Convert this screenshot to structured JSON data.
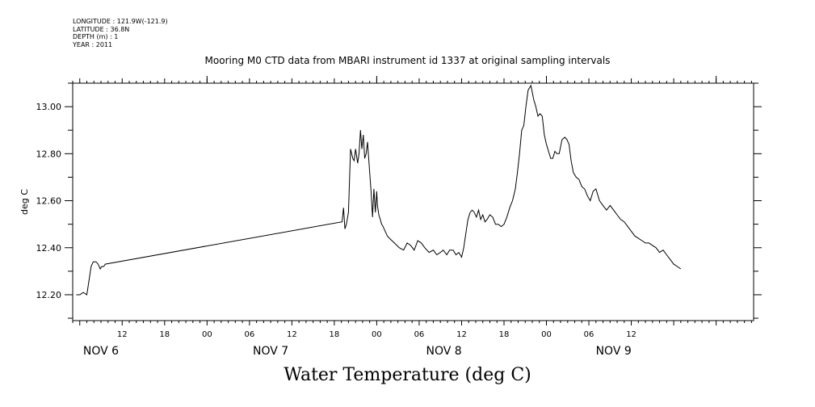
{
  "meta": {
    "longitude": "LONGITUDE : 121.9W(-121.9)",
    "latitude": "LATITUDE : 36.8N",
    "depth": "DEPTH (m) : 1",
    "year": "YEAR : 2011"
  },
  "chart_data": {
    "type": "line",
    "title": "Mooring M0 CTD data from MBARI instrument id 1337 at original sampling intervals",
    "xlabel": "Water Temperature (deg C)",
    "ylabel": "deg C",
    "xlim": [
      5.0,
      101.3
    ],
    "ylim": [
      12.09,
      13.1
    ],
    "yticks": [
      12.2,
      12.4,
      12.6,
      12.8,
      13.0
    ],
    "ytick_labels": [
      "12.20",
      "12.40",
      "12.60",
      "12.80",
      "13.00"
    ],
    "xticks": [
      12,
      18,
      24,
      30,
      36,
      42,
      48,
      54,
      60,
      66,
      72,
      78,
      84,
      90
    ],
    "xtick_labels": [
      "12",
      "18",
      "00",
      "06",
      "12",
      "18",
      "00",
      "06",
      "12",
      "18",
      "00",
      "06",
      "12"
    ],
    "xtick_label_hours": [
      12,
      18,
      24,
      30,
      36,
      42,
      48,
      54,
      60,
      66,
      72,
      78,
      84
    ],
    "day_labels": [
      {
        "hour": 9,
        "label": "NOV  6"
      },
      {
        "hour": 33,
        "label": "NOV  7"
      },
      {
        "hour": 57.5,
        "label": "NOV  8"
      },
      {
        "hour": 81.5,
        "label": "NOV  9"
      }
    ],
    "x_units": "hours since Nov 6 2011 00:00",
    "grid": false,
    "series": [
      {
        "color": "#000000",
        "x": [
          5.5,
          6.0,
          6.5,
          7.0,
          7.6,
          7.9,
          8.1,
          8.3,
          8.6,
          8.9,
          9.1,
          9.2,
          9.4,
          9.6,
          43.1,
          43.3,
          43.5,
          43.7,
          44.0,
          44.3,
          44.6,
          44.8,
          45.0,
          45.3,
          45.5,
          45.7,
          45.9,
          46.1,
          46.3,
          46.5,
          46.7,
          47.0,
          47.2,
          47.4,
          47.6,
          47.8,
          48.0,
          48.1,
          48.3,
          48.5,
          48.7,
          48.9,
          49.2,
          49.5,
          49.8,
          50.5,
          51.2,
          51.8,
          52.3,
          52.8,
          53.3,
          53.8,
          54.3,
          54.8,
          55.4,
          56.0,
          56.5,
          57.0,
          57.4,
          57.9,
          58.3,
          58.8,
          59.2,
          59.6,
          60.0,
          60.3,
          60.6,
          60.9,
          61.2,
          61.5,
          61.8,
          62.1,
          62.4,
          62.7,
          63.0,
          63.3,
          63.6,
          64.0,
          64.4,
          64.8,
          65.2,
          65.6,
          66.0,
          66.4,
          66.8,
          67.2,
          67.6,
          67.9,
          68.2,
          68.5,
          68.8,
          69.1,
          69.4,
          69.8,
          70.2,
          70.5,
          70.8,
          71.1,
          71.4,
          71.7,
          72.0,
          72.3,
          72.6,
          72.9,
          73.2,
          73.5,
          73.8,
          74.2,
          74.6,
          74.9,
          75.2,
          75.5,
          75.8,
          76.2,
          76.6,
          77.0,
          77.4,
          77.8,
          78.2,
          78.6,
          79.0,
          79.5,
          80.0,
          80.5,
          81.0,
          81.5,
          82.0,
          82.5,
          83.0,
          83.5,
          84.0,
          84.5,
          85.0,
          85.5,
          86.0,
          86.5,
          87.0,
          87.5,
          88.0,
          88.5,
          89.0,
          89.5,
          90.0,
          90.5,
          91.0
        ],
        "y": [
          12.2,
          12.2,
          12.21,
          12.2,
          12.32,
          12.34,
          12.34,
          12.34,
          12.33,
          12.31,
          12.32,
          12.32,
          12.32,
          12.33,
          12.51,
          12.57,
          12.48,
          12.5,
          12.55,
          12.82,
          12.78,
          12.77,
          12.82,
          12.76,
          12.8,
          12.9,
          12.82,
          12.88,
          12.78,
          12.8,
          12.85,
          12.72,
          12.64,
          12.53,
          12.65,
          12.55,
          12.64,
          12.58,
          12.54,
          12.52,
          12.5,
          12.49,
          12.47,
          12.45,
          12.44,
          12.42,
          12.4,
          12.39,
          12.42,
          12.41,
          12.39,
          12.43,
          12.42,
          12.4,
          12.38,
          12.39,
          12.37,
          12.38,
          12.39,
          12.37,
          12.39,
          12.39,
          12.37,
          12.38,
          12.36,
          12.4,
          12.46,
          12.52,
          12.55,
          12.56,
          12.55,
          12.53,
          12.56,
          12.52,
          12.54,
          12.51,
          12.52,
          12.54,
          12.53,
          12.5,
          12.5,
          12.49,
          12.5,
          12.53,
          12.57,
          12.6,
          12.65,
          12.72,
          12.8,
          12.9,
          12.92,
          13.0,
          13.07,
          13.09,
          13.03,
          13.0,
          12.96,
          12.97,
          12.96,
          12.88,
          12.84,
          12.81,
          12.78,
          12.78,
          12.81,
          12.8,
          12.8,
          12.86,
          12.87,
          12.86,
          12.84,
          12.77,
          12.72,
          12.7,
          12.69,
          12.66,
          12.65,
          12.62,
          12.6,
          12.64,
          12.65,
          12.6,
          12.58,
          12.56,
          12.58,
          12.56,
          12.54,
          12.52,
          12.51,
          12.49,
          12.47,
          12.45,
          12.44,
          12.43,
          12.42,
          12.42,
          12.41,
          12.4,
          12.38,
          12.39,
          12.37,
          12.35,
          12.33,
          12.32,
          12.31
        ]
      }
    ]
  }
}
